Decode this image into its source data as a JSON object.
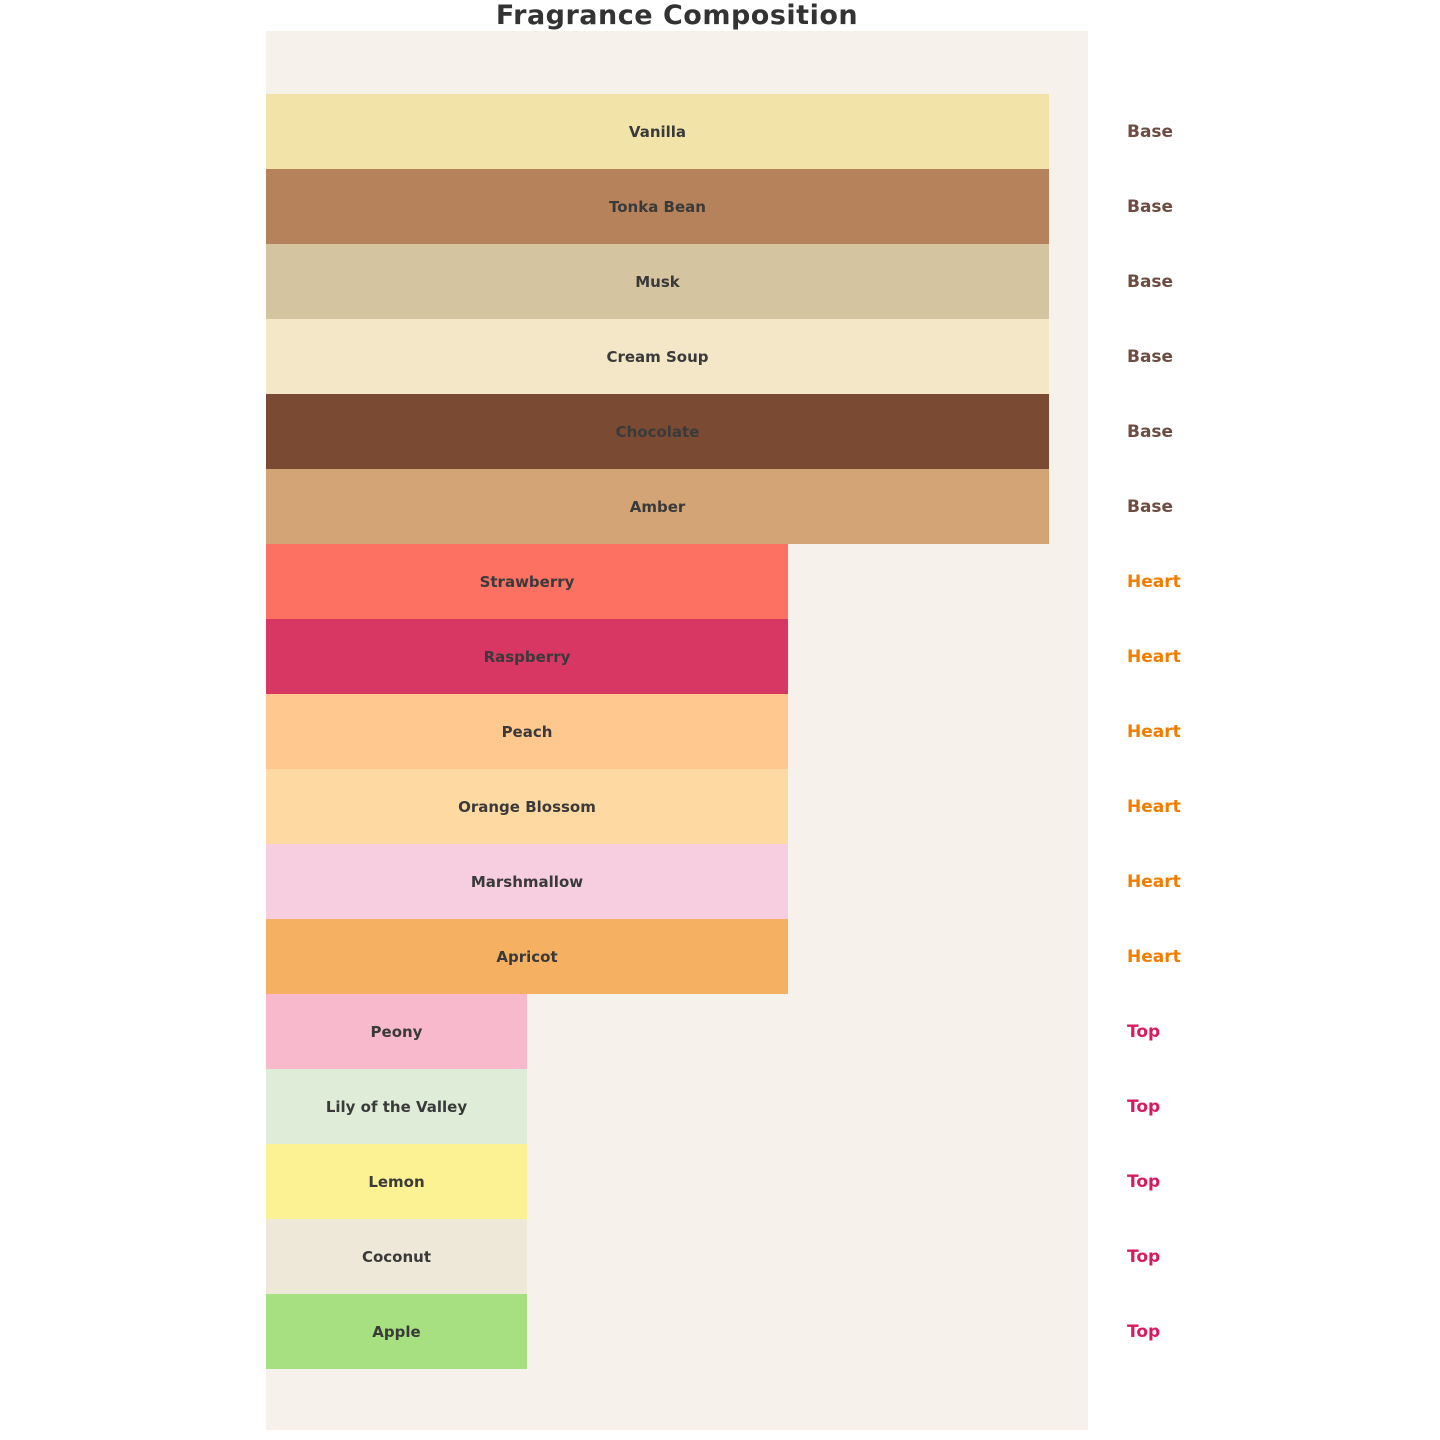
{
  "title": "Fragrance Composition",
  "colors": {
    "page_background": "#FFFFFF",
    "plot_background": "#F6F1EA",
    "title_text": "#333333",
    "bar_label_text": "#3A3A3A",
    "base_label": "#6D4C41",
    "heart_label": "#F07D00",
    "top_label": "#D81B60"
  },
  "chart_data": {
    "type": "bar",
    "orientation": "horizontal",
    "title": "Fragrance Composition",
    "xlabel": "",
    "ylabel": "",
    "xlim": [
      0,
      3.15
    ],
    "grid": false,
    "legend": "none (layer name annotated right of each bar)",
    "value_encoding": "bar length encodes note layer: Top = 1, Heart = 2, Base = 3",
    "layers": {
      "Base": {
        "value": 3,
        "label_color": "#6D4C41"
      },
      "Heart": {
        "value": 2,
        "label_color": "#F07D00"
      },
      "Top": {
        "value": 1,
        "label_color": "#D81B60"
      }
    },
    "categories": [
      "Vanilla",
      "Tonka Bean",
      "Musk",
      "Cream Soup",
      "Chocolate",
      "Amber",
      "Strawberry",
      "Raspberry",
      "Peach",
      "Orange Blossom",
      "Marshmallow",
      "Apricot",
      "Peony",
      "Lily of the Valley",
      "Lemon",
      "Coconut",
      "Apple"
    ],
    "rows": [
      {
        "label": "Vanilla",
        "layer": "Base",
        "value": 3,
        "color": "#F2E4A8"
      },
      {
        "label": "Tonka Bean",
        "layer": "Base",
        "value": 3,
        "color": "#B6825B"
      },
      {
        "label": "Musk",
        "layer": "Base",
        "value": 3,
        "color": "#D5C4A0"
      },
      {
        "label": "Cream Soup",
        "layer": "Base",
        "value": 3,
        "color": "#F3E7C8"
      },
      {
        "label": "Chocolate",
        "layer": "Base",
        "value": 3,
        "color": "#7A4A33"
      },
      {
        "label": "Amber",
        "layer": "Base",
        "value": 3,
        "color": "#D3A475"
      },
      {
        "label": "Strawberry",
        "layer": "Heart",
        "value": 2,
        "color": "#FD7163"
      },
      {
        "label": "Raspberry",
        "layer": "Heart",
        "value": 2,
        "color": "#D83763"
      },
      {
        "label": "Peach",
        "layer": "Heart",
        "value": 2,
        "color": "#FEC88F"
      },
      {
        "label": "Orange Blossom",
        "layer": "Heart",
        "value": 2,
        "color": "#FED9A2"
      },
      {
        "label": "Marshmallow",
        "layer": "Heart",
        "value": 2,
        "color": "#F6CEDF"
      },
      {
        "label": "Apricot",
        "layer": "Heart",
        "value": 2,
        "color": "#F6B062"
      },
      {
        "label": "Peony",
        "layer": "Top",
        "value": 1,
        "color": "#F8B9CD"
      },
      {
        "label": "Lily of the Valley",
        "layer": "Top",
        "value": 1,
        "color": "#DFEDD8"
      },
      {
        "label": "Lemon",
        "layer": "Top",
        "value": 1,
        "color": "#FCF193"
      },
      {
        "label": "Coconut",
        "layer": "Top",
        "value": 1,
        "color": "#EEE8D8"
      },
      {
        "label": "Apple",
        "layer": "Top",
        "value": 1,
        "color": "#A7E081"
      }
    ]
  }
}
